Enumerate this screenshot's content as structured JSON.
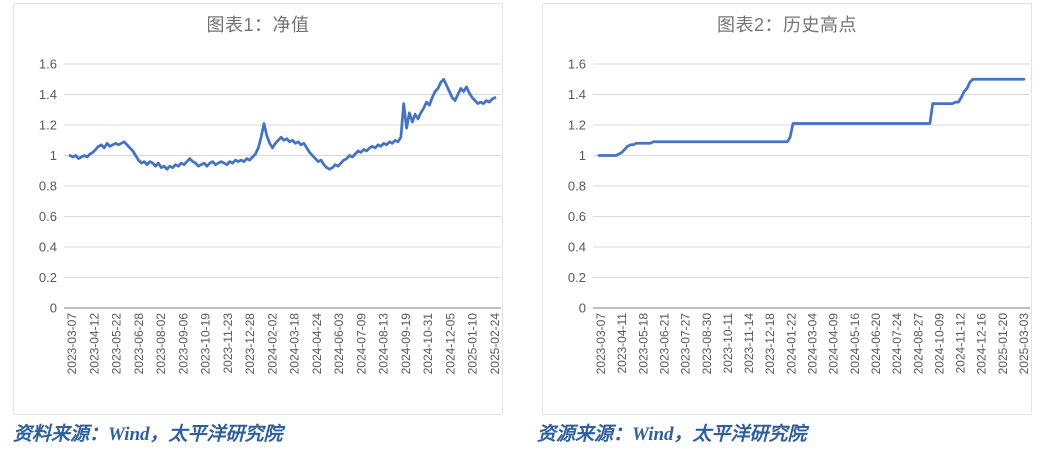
{
  "colors": {
    "line": "#4472C4",
    "gridline": "#D9D9D9",
    "axis_line": "#BFBFBF",
    "axis_text": "#595959",
    "title_text": "#747474",
    "source_text": "#30609B",
    "panel_background": "#FFFFFF",
    "page_background": "#FFFFFF"
  },
  "chart_data": [
    {
      "type": "line",
      "title": "图表1：净值",
      "source_note": "资料来源：Wind，太平洋研究院",
      "legend": "none",
      "grid": "horizontal",
      "ylim": [
        0,
        1.6
      ],
      "y_ticks": [
        0,
        0.2,
        0.4,
        0.6,
        0.8,
        1,
        1.2,
        1.4,
        1.6
      ],
      "y_tick_labels": [
        "0",
        "0.2",
        "0.4",
        "0.6",
        "0.8",
        "1",
        "1.2",
        "1.4",
        "1.6"
      ],
      "x_range": [
        "2023-03-07",
        "2025-03-07"
      ],
      "x_tick_labels": [
        "2023-03-07",
        "2023-04-12",
        "2023-05-22",
        "2023-06-28",
        "2023-08-02",
        "2023-09-06",
        "2023-10-19",
        "2023-11-23",
        "2023-12-28",
        "2024-02-02",
        "2024-03-18",
        "2024-04-24",
        "2024-06-03",
        "2024-07-09",
        "2024-08-13",
        "2024-09-19",
        "2024-10-31",
        "2024-12-05",
        "2025-01-10",
        "2025-02-24"
      ],
      "series": [
        {
          "name": "净值",
          "color": "#4472C4",
          "values": [
            1.0,
            0.99,
            1.0,
            0.98,
            0.99,
            1.0,
            0.99,
            1.01,
            1.02,
            1.04,
            1.06,
            1.07,
            1.05,
            1.08,
            1.06,
            1.07,
            1.08,
            1.07,
            1.08,
            1.09,
            1.07,
            1.05,
            1.03,
            1.0,
            0.97,
            0.95,
            0.96,
            0.94,
            0.96,
            0.95,
            0.93,
            0.95,
            0.92,
            0.93,
            0.91,
            0.93,
            0.92,
            0.94,
            0.93,
            0.95,
            0.94,
            0.96,
            0.98,
            0.96,
            0.95,
            0.93,
            0.94,
            0.95,
            0.93,
            0.95,
            0.96,
            0.94,
            0.95,
            0.96,
            0.95,
            0.94,
            0.96,
            0.95,
            0.97,
            0.96,
            0.97,
            0.96,
            0.98,
            0.97,
            0.99,
            1.01,
            1.05,
            1.12,
            1.21,
            1.13,
            1.08,
            1.05,
            1.08,
            1.1,
            1.12,
            1.1,
            1.11,
            1.09,
            1.1,
            1.08,
            1.09,
            1.07,
            1.08,
            1.05,
            1.02,
            1.0,
            0.98,
            0.96,
            0.97,
            0.94,
            0.92,
            0.91,
            0.92,
            0.94,
            0.93,
            0.95,
            0.97,
            0.98,
            1.0,
            0.99,
            1.01,
            1.03,
            1.02,
            1.04,
            1.03,
            1.05,
            1.06,
            1.05,
            1.07,
            1.06,
            1.08,
            1.07,
            1.09,
            1.08,
            1.1,
            1.09,
            1.12,
            1.34,
            1.18,
            1.28,
            1.22,
            1.27,
            1.24,
            1.28,
            1.31,
            1.35,
            1.33,
            1.38,
            1.42,
            1.44,
            1.48,
            1.5,
            1.46,
            1.42,
            1.38,
            1.36,
            1.4,
            1.44,
            1.42,
            1.45,
            1.41,
            1.38,
            1.36,
            1.34,
            1.35,
            1.34,
            1.36,
            1.35,
            1.37,
            1.38
          ]
        }
      ]
    },
    {
      "type": "line",
      "shape": "step",
      "title": "图表2：历史高点",
      "source_note": "资源来源：Wind，太平洋研究院",
      "legend": "none",
      "grid": "horizontal",
      "ylim": [
        0,
        1.6
      ],
      "y_ticks": [
        0,
        0.2,
        0.4,
        0.6,
        0.8,
        1,
        1.2,
        1.4,
        1.6
      ],
      "y_tick_labels": [
        "0",
        "0.2",
        "0.4",
        "0.6",
        "0.8",
        "1",
        "1.2",
        "1.4",
        "1.6"
      ],
      "x_range": [
        "2023-03-07",
        "2025-03-03"
      ],
      "x_tick_labels": [
        "2023-03-07",
        "2023-04-11",
        "2023-05-18",
        "2023-06-21",
        "2023-07-27",
        "2023-08-30",
        "2023-10-11",
        "2023-11-14",
        "2023-12-18",
        "2024-01-22",
        "2024-03-04",
        "2024-04-09",
        "2024-05-16",
        "2024-06-20",
        "2024-07-24",
        "2024-08-27",
        "2024-10-09",
        "2024-11-12",
        "2024-12-16",
        "2025-01-20",
        "2025-03-03"
      ],
      "series": [
        {
          "name": "历史高点",
          "color": "#4472C4",
          "values": [
            1.0,
            1.0,
            1.0,
            1.0,
            1.0,
            1.0,
            1.0,
            1.01,
            1.02,
            1.04,
            1.06,
            1.07,
            1.07,
            1.08,
            1.08,
            1.08,
            1.08,
            1.08,
            1.08,
            1.09,
            1.09,
            1.09,
            1.09,
            1.09,
            1.09,
            1.09,
            1.09,
            1.09,
            1.09,
            1.09,
            1.09,
            1.09,
            1.09,
            1.09,
            1.09,
            1.09,
            1.09,
            1.09,
            1.09,
            1.09,
            1.09,
            1.09,
            1.09,
            1.09,
            1.09,
            1.09,
            1.09,
            1.09,
            1.09,
            1.09,
            1.09,
            1.09,
            1.09,
            1.09,
            1.09,
            1.09,
            1.09,
            1.09,
            1.09,
            1.09,
            1.09,
            1.09,
            1.09,
            1.09,
            1.09,
            1.09,
            1.09,
            1.12,
            1.21,
            1.21,
            1.21,
            1.21,
            1.21,
            1.21,
            1.21,
            1.21,
            1.21,
            1.21,
            1.21,
            1.21,
            1.21,
            1.21,
            1.21,
            1.21,
            1.21,
            1.21,
            1.21,
            1.21,
            1.21,
            1.21,
            1.21,
            1.21,
            1.21,
            1.21,
            1.21,
            1.21,
            1.21,
            1.21,
            1.21,
            1.21,
            1.21,
            1.21,
            1.21,
            1.21,
            1.21,
            1.21,
            1.21,
            1.21,
            1.21,
            1.21,
            1.21,
            1.21,
            1.21,
            1.21,
            1.21,
            1.21,
            1.21,
            1.34,
            1.34,
            1.34,
            1.34,
            1.34,
            1.34,
            1.34,
            1.34,
            1.35,
            1.35,
            1.38,
            1.42,
            1.44,
            1.48,
            1.5,
            1.5,
            1.5,
            1.5,
            1.5,
            1.5,
            1.5,
            1.5,
            1.5,
            1.5,
            1.5,
            1.5,
            1.5,
            1.5,
            1.5,
            1.5,
            1.5,
            1.5,
            1.5
          ]
        }
      ]
    }
  ]
}
